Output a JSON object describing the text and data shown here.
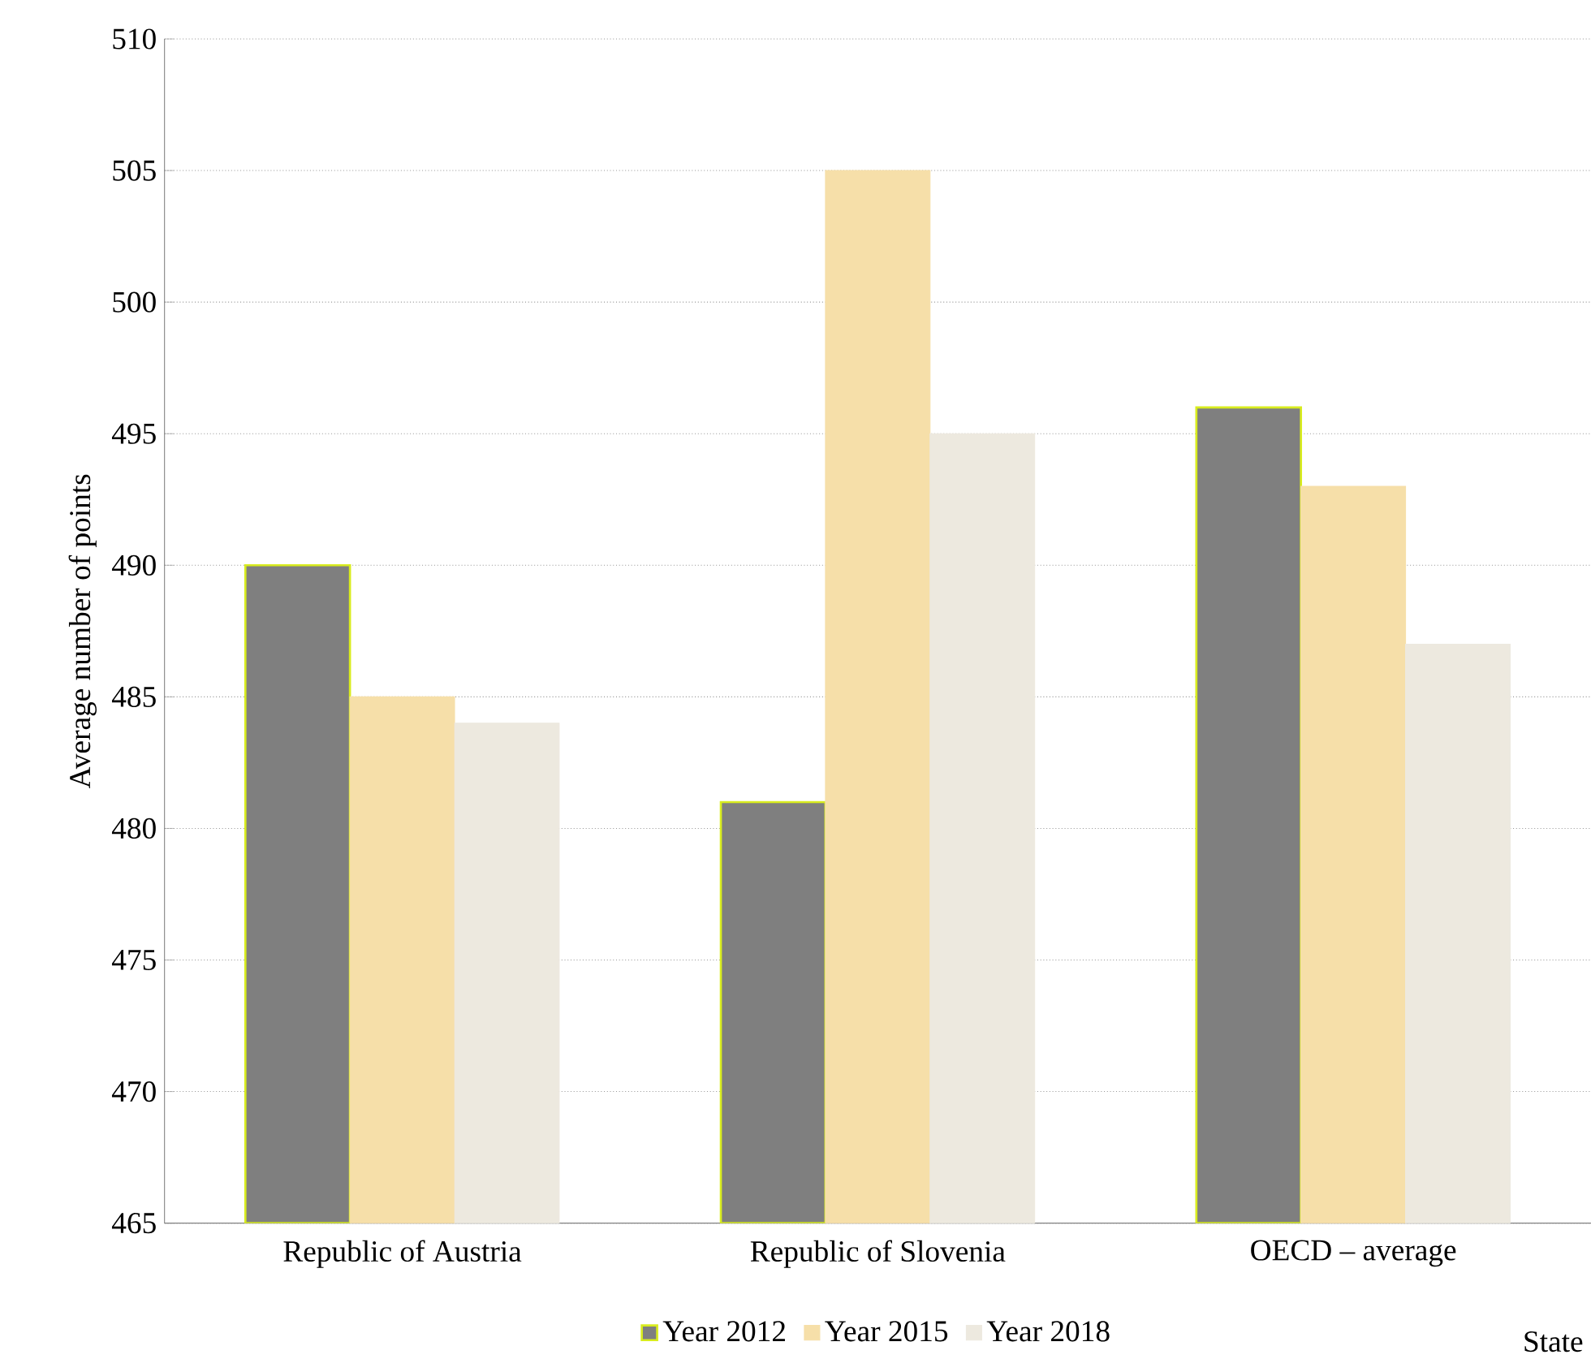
{
  "chart_data": {
    "type": "bar",
    "xlabel": "State",
    "ylabel": "Average number of points",
    "categories": [
      "Republic of Austria",
      "Republic of Slovenia",
      "OECD – average"
    ],
    "series": [
      {
        "name": "Year 2012",
        "color": "#7f7f7f",
        "values": [
          490,
          481,
          496
        ]
      },
      {
        "name": "Year 2015",
        "color": "#f6dfa9",
        "values": [
          485,
          505,
          493
        ]
      },
      {
        "name": "Year 2018",
        "color": "#ede9df",
        "values": [
          484,
          495,
          487
        ]
      }
    ],
    "ylim": [
      465,
      510
    ],
    "yticks": [
      465,
      470,
      475,
      480,
      485,
      490,
      495,
      500,
      505,
      510
    ],
    "grid": "y",
    "legend": "bottom"
  }
}
